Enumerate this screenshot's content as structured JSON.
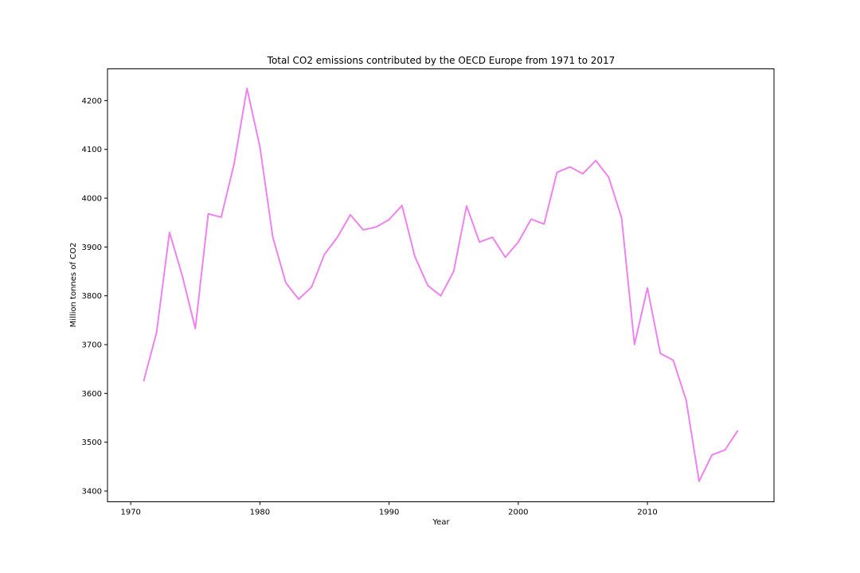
{
  "chart_data": {
    "type": "line",
    "title": "Total CO2 emissions contributed by the OECD Europe from 1971 to 2017",
    "xlabel": "Year",
    "ylabel": "Million tonnes of CO2",
    "xlim": [
      1968.2,
      2019.8
    ],
    "ylim": [
      3378,
      4265
    ],
    "x_ticks": [
      1970,
      1980,
      1990,
      2000,
      2010
    ],
    "y_ticks": [
      3400,
      3500,
      3600,
      3700,
      3800,
      3900,
      4000,
      4100,
      4200
    ],
    "grid": false,
    "series": [
      {
        "color": "#ee82ee",
        "x": [
          1971,
          1972,
          1973,
          1974,
          1975,
          1976,
          1977,
          1978,
          1979,
          1980,
          1981,
          1982,
          1983,
          1984,
          1985,
          1986,
          1987,
          1988,
          1989,
          1990,
          1991,
          1992,
          1993,
          1994,
          1995,
          1996,
          1997,
          1998,
          1999,
          2000,
          2001,
          2002,
          2003,
          2004,
          2005,
          2006,
          2007,
          2008,
          2009,
          2010,
          2011,
          2012,
          2013,
          2014,
          2015,
          2016,
          2017
        ],
        "y": [
          3625,
          3725,
          3930,
          3840,
          3733,
          3968,
          3961,
          4070,
          4225,
          4105,
          3920,
          3827,
          3793,
          3818,
          3885,
          3920,
          3966,
          3935,
          3941,
          3956,
          3985,
          3880,
          3821,
          3800,
          3850,
          3984,
          3910,
          3920,
          3879,
          3910,
          3957,
          3947,
          4053,
          4064,
          4050,
          4077,
          4043,
          3960,
          3700,
          3816,
          3682,
          3668,
          3586,
          3420,
          3474,
          3484,
          3524
        ]
      }
    ]
  }
}
